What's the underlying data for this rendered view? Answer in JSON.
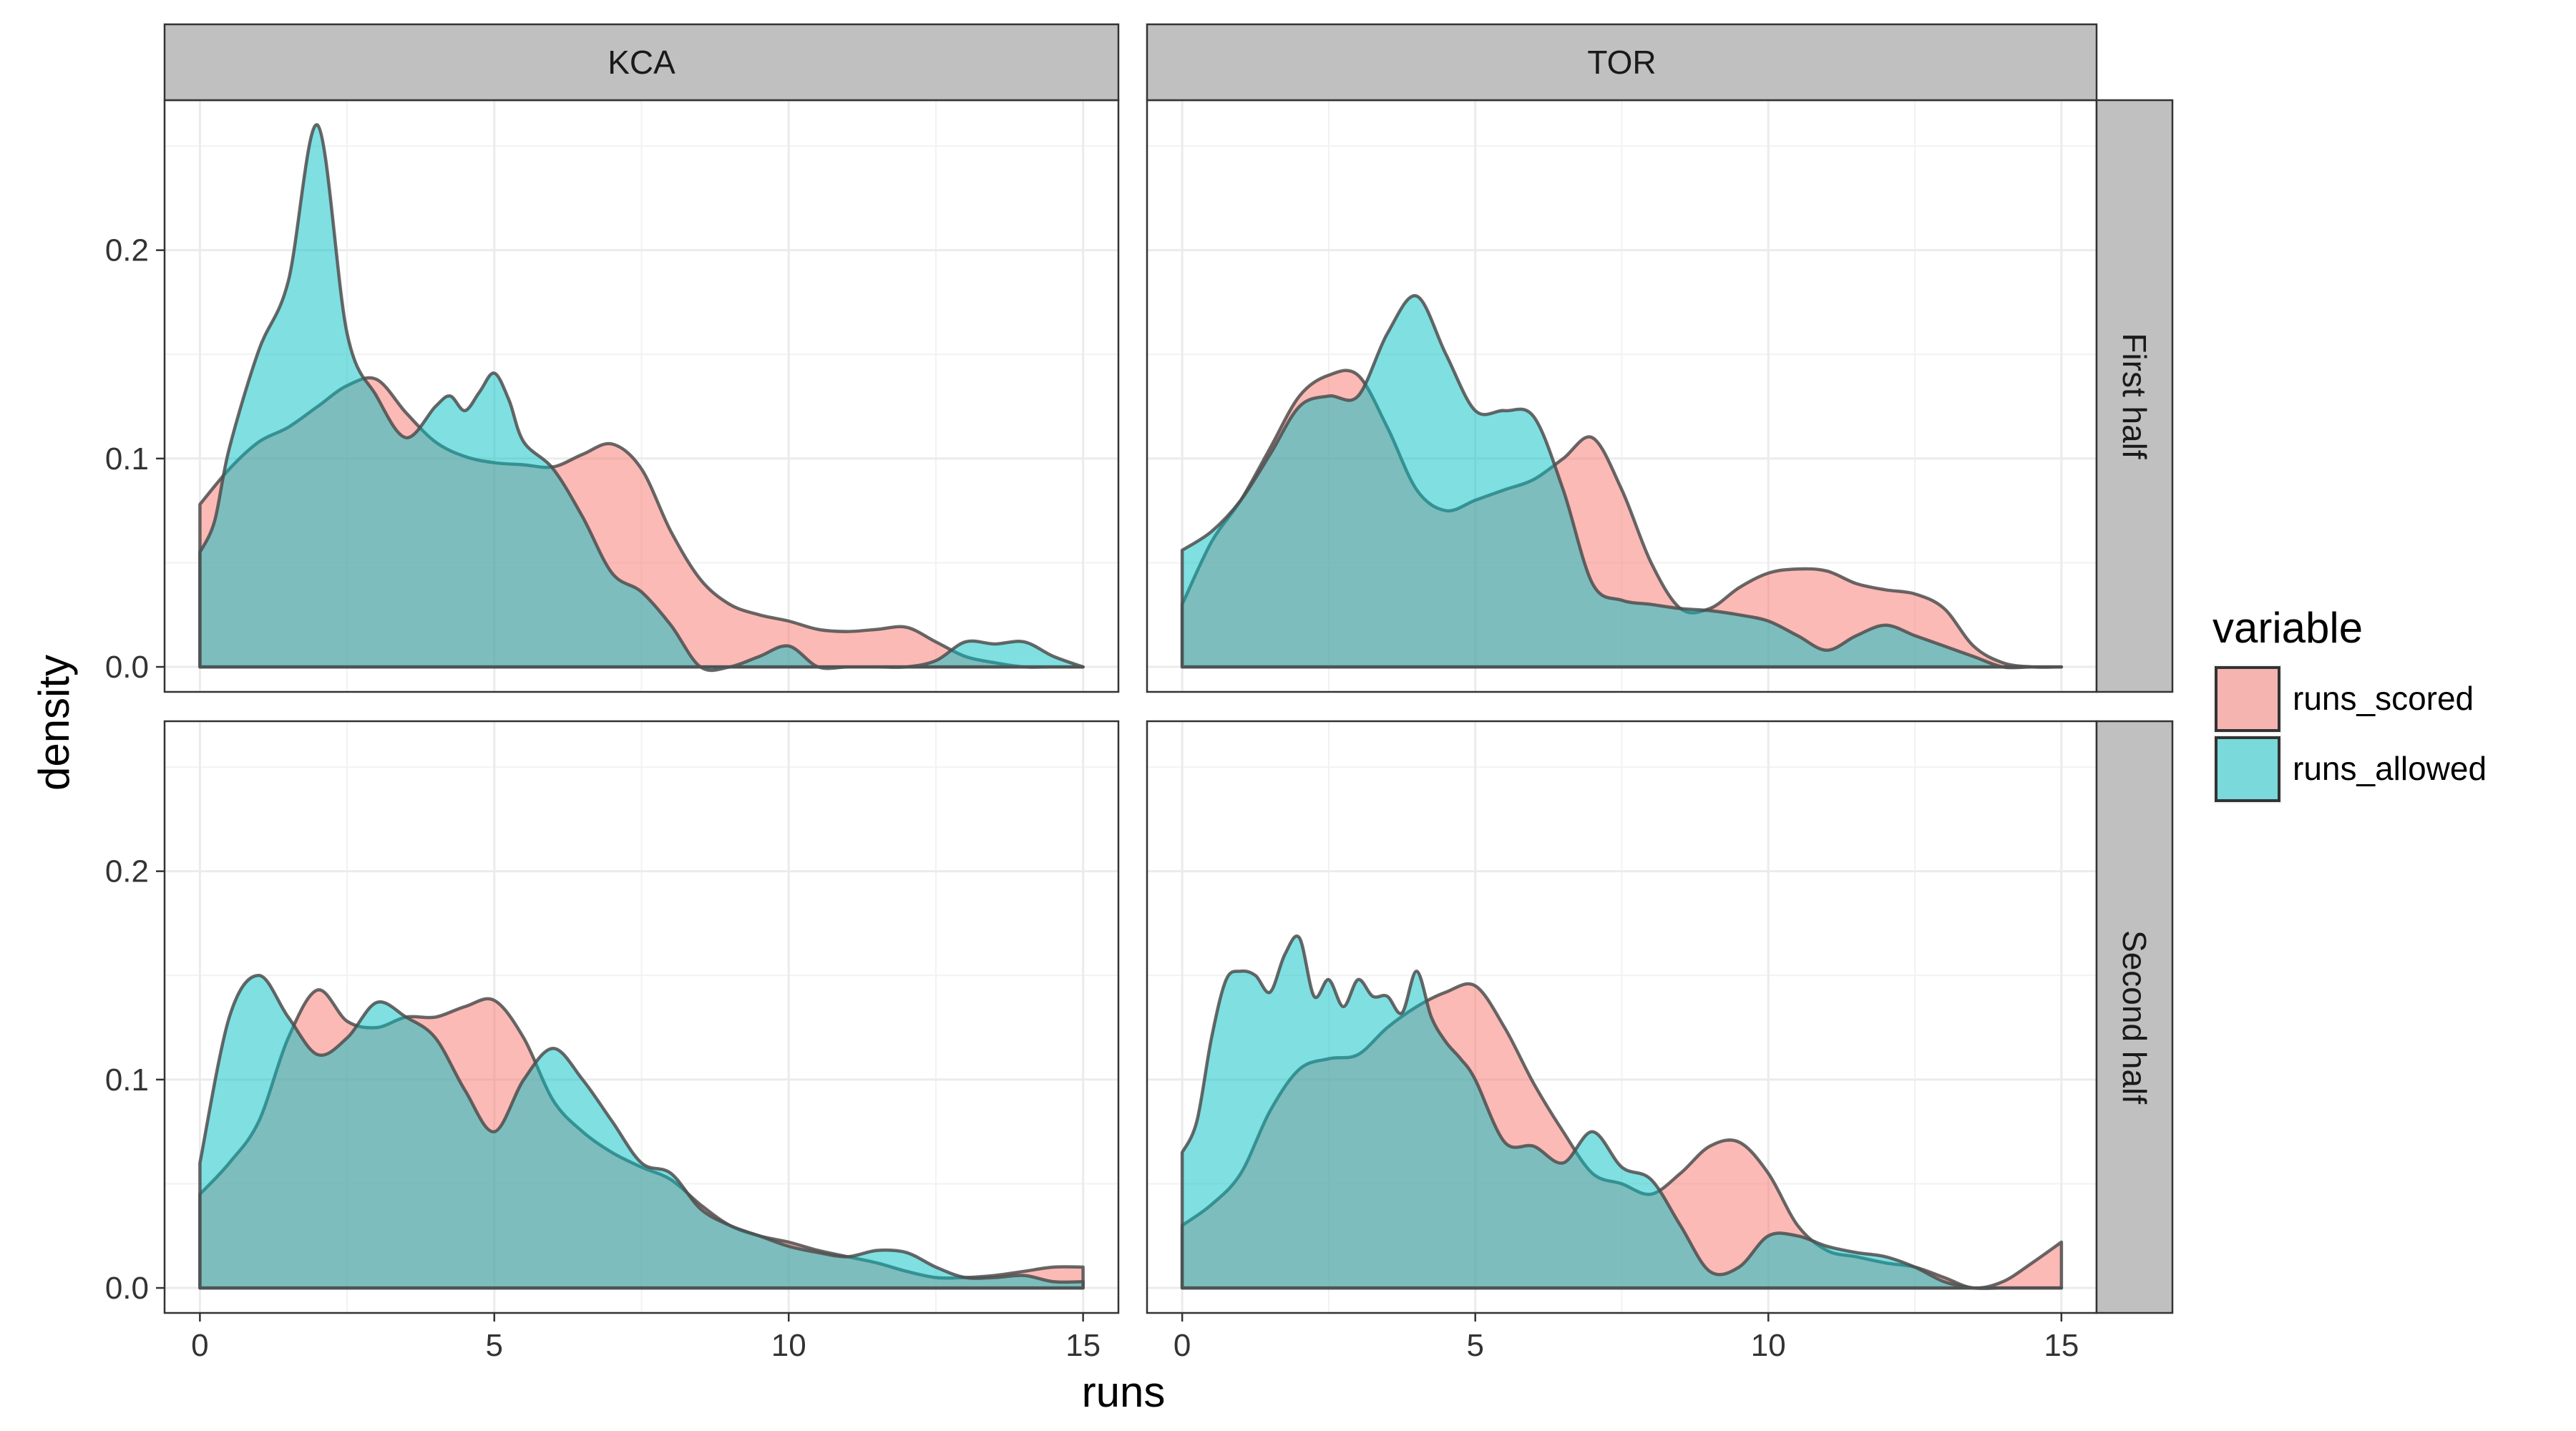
{
  "chart_data": {
    "type": "area",
    "facets": {
      "columns": [
        "KCA",
        "TOR"
      ],
      "rows": [
        "First half",
        "Second half"
      ]
    },
    "xlabel": "runs",
    "ylabel": "density",
    "xlim": [
      -0.6,
      15.6
    ],
    "ylim": [
      -0.012,
      0.272
    ],
    "x_ticks": [
      0,
      5,
      10,
      15
    ],
    "y_ticks": [
      0.0,
      0.1,
      0.2
    ],
    "y_tick_labels": [
      "0.0",
      "0.1",
      "0.2"
    ],
    "grid": true,
    "legend": {
      "title": "variable",
      "position": "right",
      "entries": [
        {
          "name": "runs_scored",
          "color": "#F8766D"
        },
        {
          "name": "runs_allowed",
          "color": "#00BFC4"
        }
      ]
    },
    "panels": [
      {
        "column": "KCA",
        "row": "First half",
        "series": [
          {
            "name": "runs_scored",
            "x": [
              0,
              0.5,
              1,
              1.5,
              2,
              2.5,
              3,
              3.5,
              4,
              4.5,
              5,
              5.5,
              6,
              6.5,
              7,
              7.5,
              8,
              8.5,
              9,
              9.5,
              10,
              10.5,
              11,
              11.5,
              12,
              12.5,
              13,
              13.5,
              14,
              14.5,
              15
            ],
            "y": [
              0.078,
              0.095,
              0.108,
              0.115,
              0.125,
              0.135,
              0.138,
              0.122,
              0.108,
              0.101,
              0.098,
              0.097,
              0.096,
              0.102,
              0.107,
              0.095,
              0.065,
              0.042,
              0.03,
              0.025,
              0.022,
              0.018,
              0.017,
              0.018,
              0.019,
              0.012,
              0.005,
              0.002,
              0.0,
              0.0,
              0.0
            ]
          },
          {
            "name": "runs_allowed",
            "x": [
              0,
              0.25,
              0.5,
              1,
              1.5,
              2,
              2.5,
              3,
              3.5,
              4,
              4.25,
              4.5,
              4.75,
              5,
              5.25,
              5.5,
              6,
              6.5,
              7,
              7.5,
              8,
              8.5,
              9,
              9.5,
              10,
              10.5,
              11,
              11.5,
              12,
              12.5,
              13,
              13.5,
              14,
              14.5,
              15
            ],
            "y": [
              0.055,
              0.07,
              0.105,
              0.152,
              0.185,
              0.26,
              0.16,
              0.13,
              0.11,
              0.125,
              0.13,
              0.123,
              0.132,
              0.141,
              0.128,
              0.108,
              0.095,
              0.072,
              0.045,
              0.036,
              0.02,
              0.0,
              0.0,
              0.005,
              0.01,
              0.0,
              0.0,
              0.0,
              0.0,
              0.003,
              0.012,
              0.011,
              0.012,
              0.005,
              0.0
            ]
          }
        ]
      },
      {
        "column": "TOR",
        "row": "First half",
        "series": [
          {
            "name": "runs_scored",
            "x": [
              0,
              0.5,
              1,
              1.5,
              2,
              2.5,
              3,
              3.5,
              4,
              4.5,
              5,
              5.5,
              6,
              6.5,
              7,
              7.5,
              8,
              8.5,
              9,
              9.5,
              10,
              10.5,
              11,
              11.5,
              12,
              12.5,
              13,
              13.5,
              14,
              14.5,
              15
            ],
            "y": [
              0.03,
              0.06,
              0.08,
              0.105,
              0.13,
              0.14,
              0.14,
              0.115,
              0.085,
              0.075,
              0.08,
              0.085,
              0.09,
              0.1,
              0.11,
              0.085,
              0.05,
              0.028,
              0.028,
              0.038,
              0.045,
              0.047,
              0.046,
              0.04,
              0.037,
              0.035,
              0.028,
              0.01,
              0.002,
              0.0,
              0.0
            ]
          },
          {
            "name": "runs_allowed",
            "x": [
              0,
              0.5,
              1,
              1.5,
              2,
              2.5,
              3,
              3.5,
              4,
              4.5,
              5,
              5.5,
              6,
              6.5,
              7,
              7.5,
              8,
              8.5,
              9,
              9.5,
              10,
              10.5,
              11,
              11.5,
              12,
              12.5,
              13,
              13.5,
              14,
              14.5,
              15
            ],
            "y": [
              0.056,
              0.065,
              0.08,
              0.102,
              0.125,
              0.13,
              0.13,
              0.16,
              0.178,
              0.15,
              0.123,
              0.123,
              0.12,
              0.085,
              0.04,
              0.032,
              0.03,
              0.028,
              0.027,
              0.025,
              0.022,
              0.015,
              0.008,
              0.015,
              0.02,
              0.015,
              0.01,
              0.005,
              0.0,
              0.0,
              0.0
            ]
          }
        ]
      },
      {
        "column": "KCA",
        "row": "Second half",
        "series": [
          {
            "name": "runs_scored",
            "x": [
              0,
              0.5,
              1,
              1.5,
              2,
              2.5,
              3,
              3.5,
              4,
              4.5,
              5,
              5.5,
              6,
              6.5,
              7,
              7.5,
              8,
              8.5,
              9,
              9.5,
              10,
              10.5,
              11,
              11.5,
              12,
              12.5,
              13,
              13.5,
              14,
              14.5,
              15
            ],
            "y": [
              0.045,
              0.06,
              0.08,
              0.12,
              0.143,
              0.128,
              0.125,
              0.13,
              0.13,
              0.135,
              0.138,
              0.12,
              0.09,
              0.075,
              0.065,
              0.058,
              0.052,
              0.04,
              0.03,
              0.025,
              0.022,
              0.018,
              0.015,
              0.012,
              0.008,
              0.005,
              0.005,
              0.006,
              0.008,
              0.01,
              0.01
            ]
          },
          {
            "name": "runs_allowed",
            "x": [
              0,
              0.5,
              1,
              1.5,
              2,
              2.5,
              3,
              3.5,
              4,
              4.5,
              5,
              5.5,
              6,
              6.5,
              7,
              7.5,
              8,
              8.5,
              9,
              9.5,
              10,
              10.5,
              11,
              11.5,
              12,
              12.5,
              13,
              13.5,
              14,
              14.5,
              15
            ],
            "y": [
              0.06,
              0.13,
              0.15,
              0.13,
              0.112,
              0.12,
              0.137,
              0.13,
              0.12,
              0.095,
              0.075,
              0.1,
              0.115,
              0.1,
              0.08,
              0.06,
              0.055,
              0.038,
              0.03,
              0.025,
              0.02,
              0.017,
              0.015,
              0.018,
              0.017,
              0.01,
              0.005,
              0.005,
              0.006,
              0.003,
              0.003
            ]
          }
        ]
      },
      {
        "column": "TOR",
        "row": "Second half",
        "series": [
          {
            "name": "runs_scored",
            "x": [
              0,
              0.5,
              1,
              1.5,
              2,
              2.5,
              3,
              3.5,
              4,
              4.5,
              5,
              5.5,
              6,
              6.5,
              7,
              7.5,
              8,
              8.5,
              9,
              9.5,
              10,
              10.5,
              11,
              11.5,
              12,
              12.5,
              13,
              13.5,
              14,
              14.5,
              15
            ],
            "y": [
              0.03,
              0.04,
              0.055,
              0.085,
              0.105,
              0.11,
              0.112,
              0.125,
              0.135,
              0.142,
              0.145,
              0.125,
              0.098,
              0.075,
              0.055,
              0.05,
              0.045,
              0.055,
              0.068,
              0.07,
              0.055,
              0.03,
              0.018,
              0.015,
              0.012,
              0.01,
              0.005,
              0.0,
              0.003,
              0.012,
              0.022
            ]
          },
          {
            "name": "runs_allowed",
            "x": [
              0,
              0.25,
              0.5,
              0.75,
              1,
              1.25,
              1.5,
              1.75,
              2,
              2.25,
              2.5,
              2.75,
              3,
              3.25,
              3.5,
              3.75,
              4,
              4.25,
              4.5,
              4.75,
              5,
              5.5,
              6,
              6.5,
              7,
              7.5,
              8,
              8.5,
              9,
              9.5,
              10,
              10.5,
              11,
              11.5,
              12,
              12.5,
              13,
              13.5,
              14,
              14.5,
              15
            ],
            "y": [
              0.065,
              0.08,
              0.12,
              0.148,
              0.152,
              0.15,
              0.142,
              0.16,
              0.168,
              0.14,
              0.148,
              0.135,
              0.148,
              0.14,
              0.14,
              0.132,
              0.152,
              0.13,
              0.118,
              0.11,
              0.1,
              0.07,
              0.068,
              0.06,
              0.075,
              0.058,
              0.052,
              0.03,
              0.008,
              0.01,
              0.025,
              0.025,
              0.02,
              0.017,
              0.015,
              0.01,
              0.003,
              0.0,
              0.0,
              0.0,
              0.0
            ]
          }
        ]
      }
    ]
  }
}
